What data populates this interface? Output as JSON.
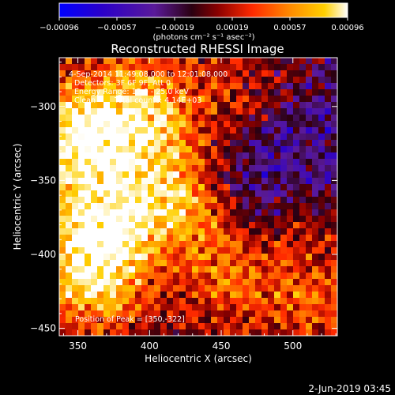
{
  "chart_data": {
    "type": "heatmap",
    "title": "Reconstructed RHESSI Image",
    "xlabel": "Heliocentric X (arcsec)",
    "ylabel": "Heliocentric Y (arcsec)",
    "xlim": [
      337,
      531
    ],
    "ylim": [
      -455,
      -267
    ],
    "x_ticks": [
      350,
      400,
      450,
      500
    ],
    "y_ticks": [
      -300,
      -350,
      -400,
      -450
    ],
    "peak": [
      350,
      -322
    ],
    "hot_spots": [
      {
        "x": 350,
        "y": -322,
        "intensity": 1.0
      },
      {
        "x": 365,
        "y": -385,
        "intensity": 0.8
      },
      {
        "x": 420,
        "y": -360,
        "intensity": 0.85
      },
      {
        "x": 400,
        "y": -300,
        "intensity": 0.7
      },
      {
        "x": 360,
        "y": -420,
        "intensity": 0.6
      },
      {
        "x": 460,
        "y": -410,
        "intensity": 0.6
      },
      {
        "x": 510,
        "y": -370,
        "intensity": 0.55
      },
      {
        "x": 470,
        "y": -300,
        "intensity": 0.45
      },
      {
        "x": 520,
        "y": -430,
        "intensity": 0.45
      }
    ],
    "cold_zone": {
      "x": 490,
      "y": -350
    },
    "colorbar": {
      "range": [
        -0.00096,
        0.00096
      ],
      "tick_labels": [
        "-0.00096",
        "-0.00057",
        "-0.00019",
        "0.00019",
        "0.00057",
        "0.00096"
      ],
      "unit_label": "(photons cm⁻² s⁻¹ asec⁻²)",
      "colors": [
        "#0000ff",
        "#2b00c8",
        "#5a1a9a",
        "#2a0010",
        "#8a0000",
        "#ff2a00",
        "#ff8a00",
        "#ffd000",
        "#ffffff"
      ]
    },
    "annotations": [
      "4-Sep-2014 11:49:08.000 to 12:01:08.000",
      "Detectors: 3F 6F 9F, Att 0",
      "Energy Range: 12.0 - 25.0 keV",
      "Clean",
      "Total counts: 4.14E+03"
    ],
    "peak_label": "Position of Peak = [350,-322]"
  },
  "footer": {
    "timestamp": "2-Jun-2019 03:45"
  }
}
